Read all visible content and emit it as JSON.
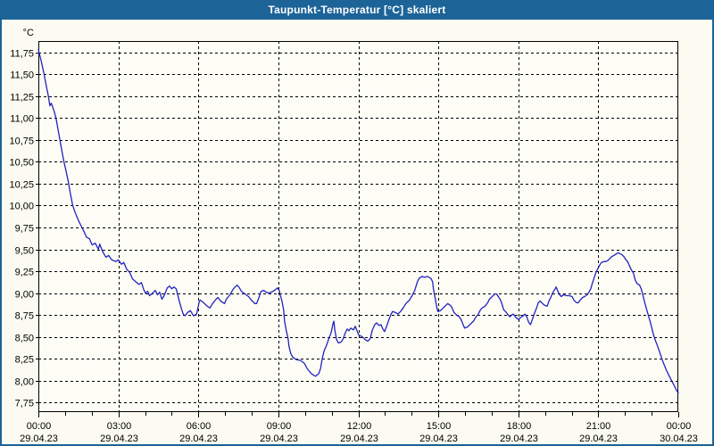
{
  "window": {
    "title": "Taupunkt-Temperatur [°C] skaliert"
  },
  "colors": {
    "frame": "#1c6398",
    "titlebar_bg": "#1c6398",
    "title_text": "#ffffff",
    "content_bg": "#fbfbf1",
    "plot_bg": "#fdfdf6",
    "grid": "#000000",
    "axis": "#000000",
    "tick_label": "#000000",
    "line": "#2222c0"
  },
  "chart_data": {
    "type": "line",
    "title": "Taupunkt-Temperatur [°C] skaliert",
    "ylabel": "°C",
    "y_unit_label": "°C",
    "grid": "dashed, horizontal every 0.25 °C, vertical every 3 h",
    "legend_position": "none",
    "ylim": [
      7.64,
      11.88
    ],
    "xlim_minutes": [
      0,
      1440
    ],
    "x_minor_tick_minutes": 60,
    "y_ticks": [
      {
        "value": 11.75,
        "label": "11,75"
      },
      {
        "value": 11.5,
        "label": "11,50"
      },
      {
        "value": 11.25,
        "label": "11,25"
      },
      {
        "value": 11.0,
        "label": "11,00"
      },
      {
        "value": 10.75,
        "label": "10,75"
      },
      {
        "value": 10.5,
        "label": "10,50"
      },
      {
        "value": 10.25,
        "label": "10,25"
      },
      {
        "value": 10.0,
        "label": "10,00"
      },
      {
        "value": 9.75,
        "label": "9,75"
      },
      {
        "value": 9.5,
        "label": "9,50"
      },
      {
        "value": 9.25,
        "label": "9,25"
      },
      {
        "value": 9.0,
        "label": "9,00"
      },
      {
        "value": 8.75,
        "label": "8,75"
      },
      {
        "value": 8.5,
        "label": "8,50"
      },
      {
        "value": 8.25,
        "label": "8,25"
      },
      {
        "value": 8.0,
        "label": "8,00"
      },
      {
        "value": 7.75,
        "label": "7,75"
      }
    ],
    "x_ticks": [
      {
        "minutes": 0,
        "time": "00:00",
        "date": "29.04.23"
      },
      {
        "minutes": 180,
        "time": "03:00",
        "date": "29.04.23"
      },
      {
        "minutes": 360,
        "time": "06:00",
        "date": "29.04.23"
      },
      {
        "minutes": 540,
        "time": "09:00",
        "date": "29.04.23"
      },
      {
        "minutes": 720,
        "time": "12:00",
        "date": "29.04.23"
      },
      {
        "minutes": 900,
        "time": "15:00",
        "date": "29.04.23"
      },
      {
        "minutes": 1080,
        "time": "18:00",
        "date": "29.04.23"
      },
      {
        "minutes": 1260,
        "time": "21:00",
        "date": "29.04.23"
      },
      {
        "minutes": 1440,
        "time": "00:00",
        "date": "30.04.23"
      }
    ],
    "series": [
      {
        "name": "Taupunkt-Temperatur",
        "color": "#2222c0",
        "points": [
          [
            0,
            11.78
          ],
          [
            6,
            11.66
          ],
          [
            12,
            11.52
          ],
          [
            18,
            11.36
          ],
          [
            22,
            11.26
          ],
          [
            26,
            11.14
          ],
          [
            29,
            11.17
          ],
          [
            32,
            11.13
          ],
          [
            36,
            11.07
          ],
          [
            40,
            10.99
          ],
          [
            46,
            10.82
          ],
          [
            52,
            10.65
          ],
          [
            57,
            10.51
          ],
          [
            62,
            10.4
          ],
          [
            67,
            10.28
          ],
          [
            72,
            10.14
          ],
          [
            77,
            10.01
          ],
          [
            82,
            9.93
          ],
          [
            87,
            9.87
          ],
          [
            92,
            9.81
          ],
          [
            97,
            9.76
          ],
          [
            103,
            9.7
          ],
          [
            108,
            9.64
          ],
          [
            115,
            9.62
          ],
          [
            121,
            9.55
          ],
          [
            128,
            9.57
          ],
          [
            135,
            9.5
          ],
          [
            138,
            9.56
          ],
          [
            145,
            9.47
          ],
          [
            152,
            9.41
          ],
          [
            158,
            9.43
          ],
          [
            165,
            9.38
          ],
          [
            174,
            9.36
          ],
          [
            180,
            9.38
          ],
          [
            187,
            9.33
          ],
          [
            192,
            9.35
          ],
          [
            199,
            9.27
          ],
          [
            205,
            9.24
          ],
          [
            212,
            9.16
          ],
          [
            219,
            9.13
          ],
          [
            226,
            9.1
          ],
          [
            232,
            9.12
          ],
          [
            237,
            9.04
          ],
          [
            241,
            9.0
          ],
          [
            246,
            9.02
          ],
          [
            250,
            8.97
          ],
          [
            257,
            9.0
          ],
          [
            263,
            9.03
          ],
          [
            268,
            8.98
          ],
          [
            273,
            9.01
          ],
          [
            278,
            8.93
          ],
          [
            283,
            8.97
          ],
          [
            290,
            9.06
          ],
          [
            295,
            9.08
          ],
          [
            300,
            9.05
          ],
          [
            305,
            9.07
          ],
          [
            310,
            9.05
          ],
          [
            316,
            8.93
          ],
          [
            322,
            8.82
          ],
          [
            326,
            8.76
          ],
          [
            330,
            8.74
          ],
          [
            336,
            8.78
          ],
          [
            342,
            8.8
          ],
          [
            349,
            8.74
          ],
          [
            356,
            8.76
          ],
          [
            362,
            8.9
          ],
          [
            364,
            8.92
          ],
          [
            372,
            8.89
          ],
          [
            380,
            8.85
          ],
          [
            386,
            8.83
          ],
          [
            392,
            8.88
          ],
          [
            398,
            8.92
          ],
          [
            404,
            8.95
          ],
          [
            410,
            8.91
          ],
          [
            419,
            8.88
          ],
          [
            423,
            8.93
          ],
          [
            431,
            8.98
          ],
          [
            439,
            9.05
          ],
          [
            447,
            9.09
          ],
          [
            451,
            9.07
          ],
          [
            457,
            9.02
          ],
          [
            465,
            8.99
          ],
          [
            473,
            8.96
          ],
          [
            479,
            8.92
          ],
          [
            487,
            8.88
          ],
          [
            491,
            8.88
          ],
          [
            497,
            8.96
          ],
          [
            501,
            9.02
          ],
          [
            507,
            9.03
          ],
          [
            513,
            9.01
          ],
          [
            519,
            9.0
          ],
          [
            528,
            9.02
          ],
          [
            534,
            9.04
          ],
          [
            538,
            9.06
          ],
          [
            542,
            9.03
          ],
          [
            544,
            8.98
          ],
          [
            548,
            8.91
          ],
          [
            552,
            8.8
          ],
          [
            554,
            8.68
          ],
          [
            558,
            8.57
          ],
          [
            562,
            8.48
          ],
          [
            564,
            8.39
          ],
          [
            568,
            8.31
          ],
          [
            572,
            8.27
          ],
          [
            580,
            8.24
          ],
          [
            590,
            8.23
          ],
          [
            598,
            8.2
          ],
          [
            606,
            8.13
          ],
          [
            614,
            8.08
          ],
          [
            620,
            8.06
          ],
          [
            624,
            8.05
          ],
          [
            631,
            8.08
          ],
          [
            635,
            8.14
          ],
          [
            639,
            8.26
          ],
          [
            643,
            8.34
          ],
          [
            649,
            8.41
          ],
          [
            653,
            8.47
          ],
          [
            659,
            8.55
          ],
          [
            663,
            8.65
          ],
          [
            665,
            8.68
          ],
          [
            667,
            8.58
          ],
          [
            671,
            8.47
          ],
          [
            675,
            8.43
          ],
          [
            681,
            8.44
          ],
          [
            685,
            8.47
          ],
          [
            691,
            8.55
          ],
          [
            695,
            8.59
          ],
          [
            699,
            8.57
          ],
          [
            703,
            8.6
          ],
          [
            709,
            8.58
          ],
          [
            713,
            8.62
          ],
          [
            717,
            8.57
          ],
          [
            721,
            8.52
          ],
          [
            729,
            8.5
          ],
          [
            735,
            8.47
          ],
          [
            741,
            8.45
          ],
          [
            747,
            8.48
          ],
          [
            751,
            8.57
          ],
          [
            757,
            8.64
          ],
          [
            761,
            8.66
          ],
          [
            767,
            8.63
          ],
          [
            771,
            8.64
          ],
          [
            775,
            8.59
          ],
          [
            779,
            8.56
          ],
          [
            785,
            8.64
          ],
          [
            789,
            8.7
          ],
          [
            793,
            8.75
          ],
          [
            797,
            8.79
          ],
          [
            803,
            8.78
          ],
          [
            809,
            8.76
          ],
          [
            815,
            8.79
          ],
          [
            821,
            8.83
          ],
          [
            827,
            8.88
          ],
          [
            835,
            8.92
          ],
          [
            841,
            8.97
          ],
          [
            847,
            9.03
          ],
          [
            853,
            9.13
          ],
          [
            857,
            9.17
          ],
          [
            863,
            9.19
          ],
          [
            869,
            9.18
          ],
          [
            875,
            9.19
          ],
          [
            883,
            9.17
          ],
          [
            887,
            9.13
          ],
          [
            889,
            9.05
          ],
          [
            893,
            8.94
          ],
          [
            897,
            8.83
          ],
          [
            899,
            8.79
          ],
          [
            905,
            8.8
          ],
          [
            909,
            8.82
          ],
          [
            915,
            8.85
          ],
          [
            921,
            8.88
          ],
          [
            927,
            8.86
          ],
          [
            931,
            8.83
          ],
          [
            935,
            8.78
          ],
          [
            941,
            8.75
          ],
          [
            947,
            8.73
          ],
          [
            951,
            8.7
          ],
          [
            955,
            8.65
          ],
          [
            959,
            8.6
          ],
          [
            965,
            8.61
          ],
          [
            969,
            8.63
          ],
          [
            975,
            8.66
          ],
          [
            979,
            8.68
          ],
          [
            985,
            8.73
          ],
          [
            989,
            8.75
          ],
          [
            995,
            8.81
          ],
          [
            999,
            8.83
          ],
          [
            1005,
            8.85
          ],
          [
            1011,
            8.89
          ],
          [
            1015,
            8.93
          ],
          [
            1021,
            8.96
          ],
          [
            1027,
            8.99
          ],
          [
            1031,
            8.99
          ],
          [
            1035,
            8.96
          ],
          [
            1039,
            8.93
          ],
          [
            1043,
            8.88
          ],
          [
            1047,
            8.81
          ],
          [
            1053,
            8.78
          ],
          [
            1057,
            8.75
          ],
          [
            1061,
            8.73
          ],
          [
            1065,
            8.75
          ],
          [
            1069,
            8.76
          ],
          [
            1073,
            8.73
          ],
          [
            1077,
            8.71
          ],
          [
            1081,
            8.7
          ],
          [
            1085,
            8.72
          ],
          [
            1091,
            8.74
          ],
          [
            1095,
            8.76
          ],
          [
            1099,
            8.73
          ],
          [
            1103,
            8.67
          ],
          [
            1107,
            8.64
          ],
          [
            1109,
            8.66
          ],
          [
            1113,
            8.72
          ],
          [
            1117,
            8.78
          ],
          [
            1121,
            8.83
          ],
          [
            1125,
            8.89
          ],
          [
            1129,
            8.91
          ],
          [
            1133,
            8.89
          ],
          [
            1139,
            8.86
          ],
          [
            1145,
            8.85
          ],
          [
            1149,
            8.91
          ],
          [
            1153,
            8.95
          ],
          [
            1157,
            9.0
          ],
          [
            1163,
            9.05
          ],
          [
            1165,
            9.07
          ],
          [
            1169,
            9.02
          ],
          [
            1173,
            8.98
          ],
          [
            1177,
            8.96
          ],
          [
            1181,
            8.98
          ],
          [
            1189,
            8.97
          ],
          [
            1195,
            8.97
          ],
          [
            1201,
            8.96
          ],
          [
            1205,
            8.92
          ],
          [
            1211,
            8.89
          ],
          [
            1215,
            8.89
          ],
          [
            1219,
            8.92
          ],
          [
            1225,
            8.95
          ],
          [
            1229,
            8.96
          ],
          [
            1235,
            8.98
          ],
          [
            1239,
            9.01
          ],
          [
            1243,
            9.05
          ],
          [
            1247,
            9.12
          ],
          [
            1251,
            9.18
          ],
          [
            1255,
            9.24
          ],
          [
            1259,
            9.28
          ],
          [
            1263,
            9.32
          ],
          [
            1267,
            9.35
          ],
          [
            1273,
            9.36
          ],
          [
            1277,
            9.36
          ],
          [
            1281,
            9.37
          ],
          [
            1287,
            9.4
          ],
          [
            1291,
            9.42
          ],
          [
            1295,
            9.43
          ],
          [
            1301,
            9.45
          ],
          [
            1305,
            9.46
          ],
          [
            1309,
            9.45
          ],
          [
            1313,
            9.44
          ],
          [
            1317,
            9.42
          ],
          [
            1321,
            9.39
          ],
          [
            1327,
            9.35
          ],
          [
            1331,
            9.3
          ],
          [
            1335,
            9.26
          ],
          [
            1339,
            9.23
          ],
          [
            1343,
            9.15
          ],
          [
            1347,
            9.11
          ],
          [
            1353,
            9.09
          ],
          [
            1357,
            9.04
          ],
          [
            1361,
            8.96
          ],
          [
            1365,
            8.88
          ],
          [
            1369,
            8.81
          ],
          [
            1373,
            8.74
          ],
          [
            1377,
            8.67
          ],
          [
            1381,
            8.59
          ],
          [
            1385,
            8.51
          ],
          [
            1389,
            8.45
          ],
          [
            1393,
            8.4
          ],
          [
            1397,
            8.34
          ],
          [
            1401,
            8.28
          ],
          [
            1405,
            8.22
          ],
          [
            1409,
            8.17
          ],
          [
            1413,
            8.12
          ],
          [
            1417,
            8.08
          ],
          [
            1421,
            8.04
          ],
          [
            1425,
            8.0
          ],
          [
            1429,
            7.96
          ],
          [
            1433,
            7.92
          ],
          [
            1437,
            7.88
          ],
          [
            1440,
            7.86
          ]
        ]
      }
    ]
  }
}
